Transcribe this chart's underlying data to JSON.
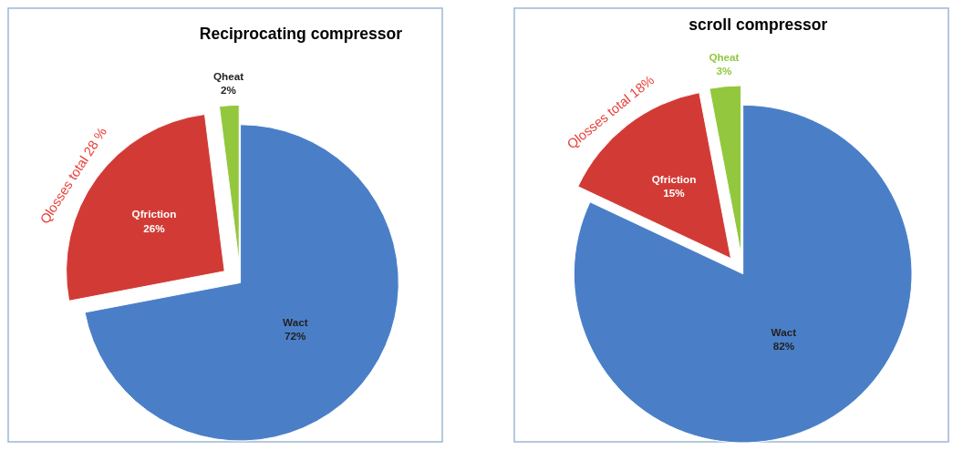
{
  "chart_data": [
    {
      "type": "pie",
      "title": "Reciprocating compressor",
      "categories": [
        "Wact",
        "Qfriction",
        "Qheat"
      ],
      "values": [
        72,
        26,
        2
      ],
      "value_labels": [
        "72%",
        "26%",
        "2%"
      ],
      "colors": [
        "#4a7fc8",
        "#d23b35",
        "#93c83e"
      ],
      "annotations": [
        "Qlosses total  28 %"
      ]
    },
    {
      "type": "pie",
      "title": "scroll compressor",
      "categories": [
        "Wact",
        "Qfriction",
        "Qheat"
      ],
      "values": [
        82,
        15,
        3
      ],
      "value_labels": [
        "82%",
        "15%",
        "3%"
      ],
      "colors": [
        "#4a7fc8",
        "#d23b35",
        "#93c83e"
      ],
      "annotations": [
        "Qlosses total  18%"
      ]
    }
  ]
}
